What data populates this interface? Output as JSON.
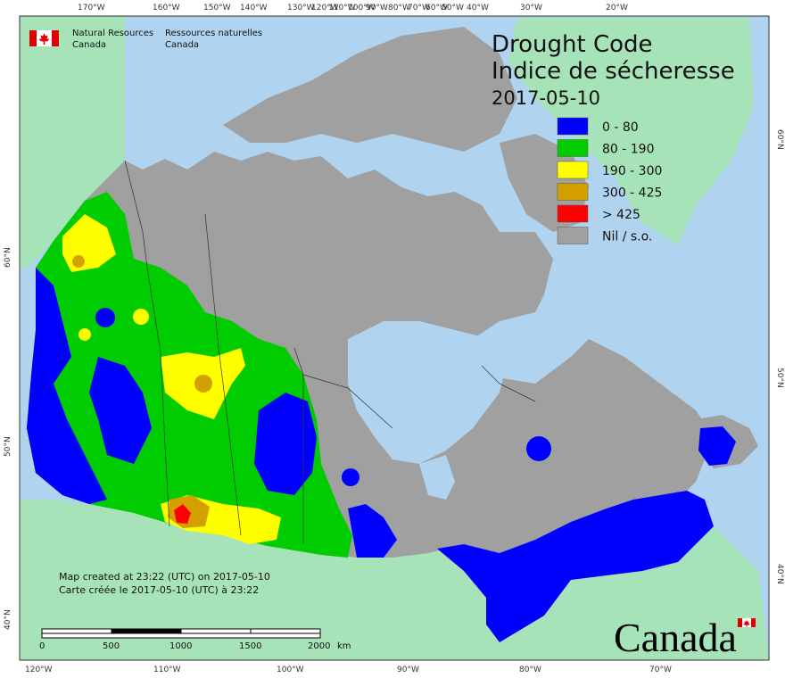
{
  "org": {
    "en_line1": "Natural Resources",
    "en_line2": "Canada",
    "fr_line1": "Ressources naturelles",
    "fr_line2": "Canada"
  },
  "title": {
    "line1": "Drought Code",
    "line2": "Indice de sécheresse",
    "date": "2017-05-10"
  },
  "legend": [
    {
      "label": "0 - 80",
      "color": "#0000ff"
    },
    {
      "label": "80 - 190",
      "color": "#00cc00"
    },
    {
      "label": "190 - 300",
      "color": "#ffff00"
    },
    {
      "label": "300 - 425",
      "color": "#d4a000"
    },
    {
      "label": "> 425",
      "color": "#ff0000"
    },
    {
      "label": "Nil / s.o.",
      "color": "#a0a0a0"
    }
  ],
  "top_ticks": [
    "170°W",
    "160°W",
    "150°W",
    "140°W",
    "130°W",
    "120°W",
    "110°W",
    "100°W",
    "90°W",
    "80°W",
    "70°W",
    "60°W",
    "50°W",
    "40°W",
    "30°W",
    "20°W"
  ],
  "bottom_ticks": [
    "120°W",
    "110°W",
    "100°W",
    "90°W",
    "80°W",
    "70°W"
  ],
  "left_lat": [
    "60°N",
    "50°N",
    "40°N"
  ],
  "right_lat": [
    "60°N",
    "50°N",
    "40°N"
  ],
  "note": {
    "line1": "Map created at 23:22 (UTC) on 2017-05-10",
    "line2": "Carte créée le 2017-05-10 (UTC) à 23:22"
  },
  "scalebar": {
    "labels": [
      "0",
      "500",
      "1000",
      "1500",
      "2000"
    ],
    "unit": "km"
  },
  "wordmark": "Canada",
  "colors": {
    "ocean": "#b0d4f0",
    "foreign_land": "#a6e3b8",
    "nil": "#a0a0a0"
  }
}
